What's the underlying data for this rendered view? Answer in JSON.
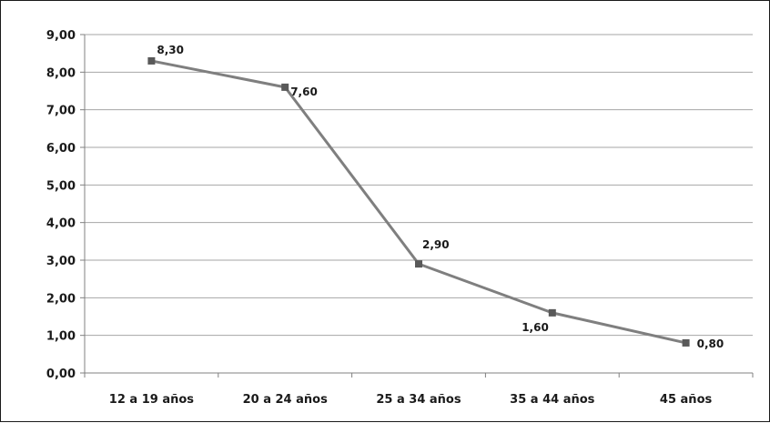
{
  "chart_data": {
    "type": "line",
    "title": "",
    "xlabel": "",
    "ylabel": "",
    "categories": [
      "12 a 19 años",
      "20 a 24 años",
      "25 a 34 años",
      "35 a 44 años",
      "45 años"
    ],
    "series": [
      {
        "values": [
          8.3,
          7.6,
          2.9,
          1.6,
          0.8
        ]
      }
    ],
    "data_labels": [
      "8,30",
      "7,60",
      "2,90",
      "1,60",
      "0,80"
    ],
    "ylim": [
      0,
      9
    ],
    "yticks": [
      0,
      1,
      2,
      3,
      4,
      5,
      6,
      7,
      8,
      9
    ],
    "ytick_labels": [
      "0,00",
      "1,00",
      "2,00",
      "3,00",
      "4,00",
      "5,00",
      "6,00",
      "7,00",
      "8,00",
      "9,00"
    ],
    "grid": "horizontal",
    "legend": "none",
    "colors": {
      "line": "#7f7f7f",
      "marker": "#595959",
      "grid": "#a6a6a6",
      "axis": "#808080",
      "text": "#1a1a1a"
    },
    "marker": "square"
  }
}
